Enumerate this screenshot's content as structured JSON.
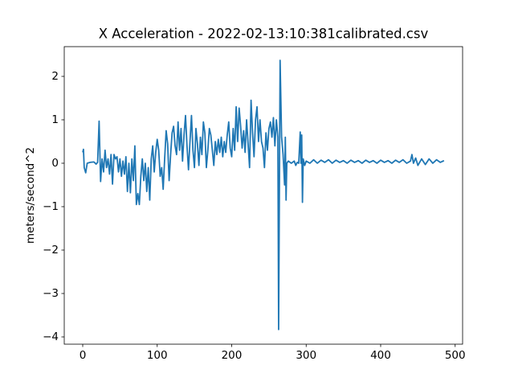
{
  "chart_data": {
    "type": "line",
    "title": "X Acceleration - 2022-02-13:10:381calibrated.csv",
    "ylabel": "meters/second^2",
    "color": "#1f77b4",
    "xlim": [
      -24.8,
      510
    ],
    "ylim": [
      -4.167,
      2.685
    ],
    "xticks": [
      0,
      100,
      200,
      300,
      400,
      500
    ],
    "yticks": [
      {
        "value": -4,
        "label": "−4"
      },
      {
        "value": -3,
        "label": "−3"
      },
      {
        "value": -2,
        "label": "−2"
      },
      {
        "value": -1,
        "label": "−1"
      },
      0,
      1,
      2
    ],
    "x": [
      0,
      1,
      2,
      4,
      6,
      10,
      15,
      18,
      20,
      22,
      24,
      26,
      28,
      30,
      32,
      34,
      36,
      38,
      40,
      42,
      44,
      46,
      48,
      50,
      52,
      54,
      56,
      58,
      60,
      62,
      64,
      66,
      68,
      70,
      72,
      74,
      76,
      78,
      80,
      82,
      84,
      86,
      88,
      90,
      92,
      94,
      96,
      98,
      100,
      102,
      104,
      106,
      108,
      110,
      112,
      114,
      116,
      118,
      120,
      122,
      124,
      126,
      128,
      130,
      132,
      134,
      136,
      138,
      140,
      142,
      144,
      146,
      148,
      150,
      152,
      154,
      156,
      158,
      160,
      162,
      164,
      166,
      168,
      170,
      172,
      174,
      176,
      178,
      180,
      182,
      184,
      186,
      188,
      190,
      192,
      194,
      196,
      198,
      200,
      202,
      204,
      206,
      208,
      210,
      212,
      214,
      216,
      218,
      220,
      222,
      224,
      226,
      228,
      230,
      232,
      234,
      236,
      238,
      240,
      242,
      244,
      246,
      248,
      250,
      252,
      254,
      256,
      258,
      260,
      262,
      263,
      265,
      267,
      269,
      271,
      272,
      273,
      274,
      276,
      280,
      284,
      286,
      288,
      290,
      292,
      293,
      294,
      295,
      296,
      298,
      300,
      305,
      310,
      315,
      320,
      325,
      330,
      335,
      340,
      345,
      350,
      355,
      360,
      365,
      370,
      375,
      380,
      385,
      390,
      395,
      400,
      405,
      410,
      415,
      420,
      425,
      430,
      435,
      440,
      442,
      444,
      447,
      450,
      455,
      460,
      465,
      470,
      475,
      480,
      485
    ],
    "values": [
      0.25,
      0.32,
      -0.1,
      -0.22,
      0.0,
      0.02,
      0.03,
      -0.02,
      0.02,
      0.97,
      -0.42,
      0.1,
      -0.2,
      0.3,
      -0.1,
      0.1,
      -0.25,
      0.2,
      -0.48,
      0.2,
      0.1,
      0.15,
      -0.2,
      0.1,
      -0.3,
      0.05,
      -0.25,
      0.15,
      -0.65,
      0.0,
      -0.68,
      0.1,
      -0.4,
      0.4,
      -0.95,
      -0.7,
      -0.95,
      -0.3,
      0.1,
      -0.4,
      0.0,
      -0.65,
      -0.1,
      -0.85,
      0.1,
      0.4,
      -0.2,
      0.25,
      0.55,
      0.3,
      -0.3,
      -0.1,
      -0.6,
      0.1,
      0.75,
      0.45,
      -0.4,
      0.2,
      0.7,
      0.85,
      0.4,
      0.2,
      0.95,
      0.3,
      0.8,
      0.05,
      0.65,
      1.1,
      0.4,
      -0.15,
      0.5,
      1.1,
      0.3,
      -0.1,
      0.8,
      0.45,
      -0.05,
      0.6,
      0.2,
      0.95,
      0.7,
      -0.1,
      0.3,
      0.8,
      0.65,
      0.3,
      -0.05,
      0.5,
      0.2,
      0.55,
      0.25,
      0.6,
      0.15,
      0.5,
      0.25,
      0.65,
      0.95,
      0.35,
      0.15,
      0.8,
      0.3,
      1.3,
      0.5,
      1.27,
      0.85,
      0.35,
      0.75,
      0.25,
      1.0,
      0.45,
      -0.1,
      1.45,
      0.7,
      0.15,
      1.0,
      1.3,
      0.5,
      1.0,
      0.5,
      0.35,
      -0.1,
      0.7,
      0.3,
      0.8,
      0.95,
      0.6,
      1.05,
      0.4,
      1.0,
      0.6,
      -3.83,
      2.37,
      0.6,
      0.2,
      -0.5,
      0.6,
      -0.85,
      0.0,
      0.05,
      0.0,
      0.05,
      -0.05,
      0.02,
      0.0,
      0.72,
      0.0,
      0.65,
      -0.9,
      0.1,
      -0.05,
      0.05,
      0.0,
      0.08,
      0.0,
      0.07,
      0.02,
      0.08,
      0.0,
      0.07,
      0.02,
      0.06,
      0.0,
      0.07,
      0.02,
      0.06,
      0.0,
      0.07,
      0.02,
      0.06,
      0.0,
      0.07,
      0.02,
      0.06,
      0.0,
      0.07,
      0.02,
      0.08,
      0.0,
      0.05,
      0.2,
      0.0,
      0.12,
      -0.05,
      0.1,
      -0.03,
      0.1,
      0.0,
      0.08,
      0.02,
      0.06
    ]
  }
}
